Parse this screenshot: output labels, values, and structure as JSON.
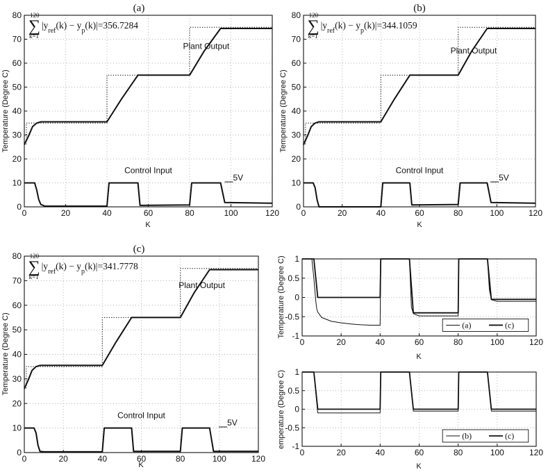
{
  "chart_data": [
    {
      "id": "a",
      "type": "line",
      "title": "(a)",
      "xlabel": "K",
      "ylabel": "Temperature (Degree C)",
      "xlim": [
        0,
        120
      ],
      "ylim": [
        0,
        80
      ],
      "xticks": [
        "0",
        "20",
        "40",
        "60",
        "80",
        "100",
        "120"
      ],
      "yticks": [
        "0",
        "10",
        "20",
        "30",
        "40",
        "50",
        "60",
        "70",
        "80"
      ],
      "grid": true,
      "sum_value": "=356.7284",
      "annotations": {
        "plant": "Plant Output",
        "control": "Control Input",
        "scale": "5V"
      },
      "series": [
        {
          "style": "dotted",
          "x": [
            0,
            1,
            1,
            40,
            40,
            80,
            80,
            120
          ],
          "y": [
            26,
            26,
            35,
            35,
            55,
            55,
            75,
            75
          ]
        },
        {
          "style": "solid",
          "x": [
            0,
            2,
            4,
            6,
            8,
            40,
            47,
            55,
            80,
            87,
            95,
            120
          ],
          "y": [
            26,
            29.5,
            33.5,
            35,
            35.5,
            35.5,
            45,
            55,
            55,
            65,
            74.5,
            74.5
          ]
        },
        {
          "style": "solid",
          "x": [
            0,
            5,
            6,
            7,
            8,
            10,
            40,
            41,
            55,
            56,
            80,
            81,
            95,
            97,
            120
          ],
          "y": [
            10,
            10,
            7,
            3,
            1,
            0.3,
            0.3,
            10,
            10,
            0.6,
            0.8,
            10,
            10,
            1.8,
            1.5
          ]
        }
      ]
    },
    {
      "id": "b",
      "type": "line",
      "title": "(b)",
      "xlabel": "K",
      "ylabel": "Temperature (Degree C)",
      "xlim": [
        0,
        120
      ],
      "ylim": [
        0,
        80
      ],
      "xticks": [
        "0",
        "20",
        "40",
        "60",
        "80",
        "100",
        "120"
      ],
      "yticks": [
        "0",
        "10",
        "20",
        "30",
        "40",
        "50",
        "60",
        "70",
        "80"
      ],
      "grid": true,
      "sum_value": "=344.1059",
      "annotations": {
        "plant": "Plant Output",
        "control": "Control Input",
        "scale": "5V"
      },
      "series": [
        {
          "style": "dotted",
          "x": [
            0,
            1,
            1,
            40,
            40,
            80,
            80,
            120
          ],
          "y": [
            26,
            26,
            35,
            35,
            55,
            55,
            75,
            75
          ]
        },
        {
          "style": "solid",
          "x": [
            0,
            2,
            4,
            6,
            8,
            40,
            47,
            55,
            80,
            87,
            95,
            120
          ],
          "y": [
            26,
            29.5,
            33.5,
            35,
            35.5,
            35.5,
            45,
            55,
            55,
            65,
            74.5,
            74.5
          ]
        },
        {
          "style": "solid",
          "x": [
            0,
            5,
            6,
            7,
            8,
            10,
            40,
            41,
            55,
            56,
            80,
            81,
            95,
            97,
            120
          ],
          "y": [
            10,
            10,
            8,
            3,
            0,
            0,
            0,
            10,
            10,
            0.8,
            1,
            10,
            10,
            1.8,
            1.5
          ]
        }
      ]
    },
    {
      "id": "c",
      "type": "line",
      "title": "(c)",
      "xlabel": "K",
      "ylabel": "Temperature (Degree C)",
      "xlim": [
        0,
        120
      ],
      "ylim": [
        0,
        80
      ],
      "xticks": [
        "0",
        "20",
        "40",
        "60",
        "80",
        "100",
        "120"
      ],
      "yticks": [
        "0",
        "10",
        "20",
        "30",
        "40",
        "50",
        "60",
        "70",
        "80"
      ],
      "grid": true,
      "sum_value": "=341.7778",
      "annotations": {
        "plant": "Plant Output",
        "control": "Control Input",
        "scale": "5V"
      },
      "series": [
        {
          "style": "dotted",
          "x": [
            0,
            1,
            1,
            40,
            40,
            80,
            80,
            120
          ],
          "y": [
            26,
            26,
            35,
            35,
            55,
            55,
            75,
            75
          ]
        },
        {
          "style": "solid",
          "x": [
            0,
            2,
            4,
            6,
            8,
            40,
            47,
            55,
            80,
            87,
            95,
            120
          ],
          "y": [
            26,
            29.5,
            33.5,
            35,
            35.5,
            35.5,
            45,
            55,
            55,
            65,
            74.5,
            74.5
          ]
        },
        {
          "style": "solid",
          "x": [
            0,
            5,
            6,
            7,
            8,
            10,
            40,
            41,
            55,
            56,
            80,
            81,
            95,
            97,
            120
          ],
          "y": [
            10,
            10,
            8,
            3,
            0.5,
            0.3,
            0.3,
            10,
            10,
            0.5,
            0.5,
            10,
            10,
            0.5,
            0.5
          ]
        }
      ]
    },
    {
      "id": "diff1",
      "type": "line",
      "xlabel": "K",
      "ylabel": "Temperature (Degree C)",
      "xlim": [
        0,
        120
      ],
      "ylim": [
        -1,
        1
      ],
      "xticks": [
        "0",
        "20",
        "40",
        "60",
        "80",
        "100",
        "120"
      ],
      "yticks": [
        "-1",
        "-0.5",
        "0",
        "0.5",
        "1"
      ],
      "grid": true,
      "legend": [
        "(a)",
        "(c)"
      ],
      "series": [
        {
          "style": "thin",
          "x": [
            0,
            5,
            6,
            7,
            7.5,
            8,
            10,
            15,
            20,
            25,
            30,
            35,
            40,
            40.3,
            55,
            56,
            57,
            60,
            80,
            80.3,
            95,
            96,
            97,
            100,
            120
          ],
          "y": [
            1,
            1,
            0.5,
            -0.1,
            -0.3,
            -0.38,
            -0.52,
            -0.62,
            -0.66,
            -0.69,
            -0.71,
            -0.72,
            -0.72,
            1,
            1,
            -0.25,
            -0.42,
            -0.48,
            -0.48,
            1,
            1,
            0.2,
            -0.06,
            -0.1,
            -0.1
          ]
        },
        {
          "style": "thick",
          "x": [
            0,
            6,
            8,
            40,
            40.3,
            55,
            57,
            80,
            80.3,
            95,
            97,
            120
          ],
          "y": [
            1,
            1,
            0,
            0,
            1,
            1,
            -0.4,
            -0.4,
            1,
            1,
            -0.05,
            -0.05
          ]
        }
      ]
    },
    {
      "id": "diff2",
      "type": "line",
      "xlabel": "K",
      "ylabel": "emperature (Degree C)",
      "xlim": [
        0,
        120
      ],
      "ylim": [
        -1,
        1
      ],
      "xticks": [
        "0",
        "20",
        "40",
        "60",
        "80",
        "100",
        "120"
      ],
      "yticks": [
        "-1",
        "-0.5",
        "0",
        "0.5",
        "1"
      ],
      "grid": true,
      "legend": [
        "(b)",
        "(c)"
      ],
      "series": [
        {
          "style": "thin",
          "x": [
            0,
            6,
            8,
            40,
            40.3,
            55,
            57,
            80,
            80.3,
            95,
            97,
            120
          ],
          "y": [
            1,
            1,
            -0.1,
            -0.1,
            1,
            1,
            -0.05,
            -0.05,
            1,
            1,
            -0.05,
            -0.05
          ]
        },
        {
          "style": "thick",
          "x": [
            0,
            6,
            8,
            40,
            40.3,
            55,
            57,
            80,
            80.3,
            95,
            97,
            120
          ],
          "y": [
            1,
            1,
            0,
            0,
            1,
            1,
            0,
            0,
            1,
            1,
            0,
            0
          ]
        }
      ]
    }
  ]
}
